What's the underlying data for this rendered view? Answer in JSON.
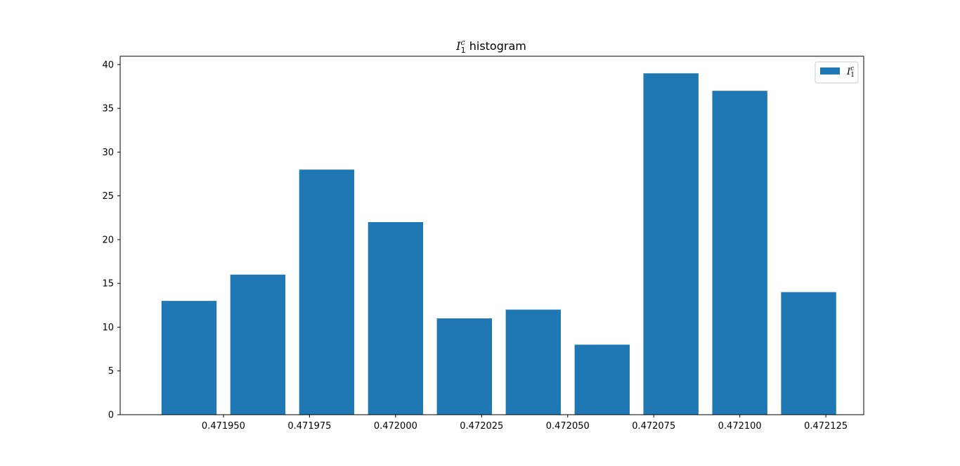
{
  "chart_data": {
    "type": "bar",
    "title": {
      "symbol": "I",
      "superscript": "c",
      "subscript": "1",
      "suffix": " histogram"
    },
    "xlabel": "",
    "ylabel": "",
    "x": [
      0.47194,
      0.47196,
      0.47198,
      0.472,
      0.47202,
      0.47204,
      0.47206,
      0.47208,
      0.4721,
      0.47212
    ],
    "values": [
      13,
      16,
      28,
      22,
      11,
      12,
      8,
      39,
      37,
      14
    ],
    "bar_width": 1.6e-05,
    "xlim": [
      0.47192,
      0.472136
    ],
    "ylim": [
      0,
      40.95
    ],
    "xticks": [
      0.47195,
      0.471975,
      0.472,
      0.472025,
      0.47205,
      0.472075,
      0.4721,
      0.472125
    ],
    "xtick_labels": [
      "0.471950",
      "0.471975",
      "0.472000",
      "0.472025",
      "0.472050",
      "0.472075",
      "0.472100",
      "0.472125"
    ],
    "yticks": [
      0,
      5,
      10,
      15,
      20,
      25,
      30,
      35,
      40
    ],
    "ytick_labels": [
      "0",
      "5",
      "10",
      "15",
      "20",
      "25",
      "30",
      "35",
      "40"
    ],
    "legend": {
      "placement": "top-right",
      "entries": [
        {
          "symbol": "I",
          "superscript": "c",
          "subscript": "1"
        }
      ]
    },
    "grid": false,
    "bar_color": "#1f77b4"
  }
}
